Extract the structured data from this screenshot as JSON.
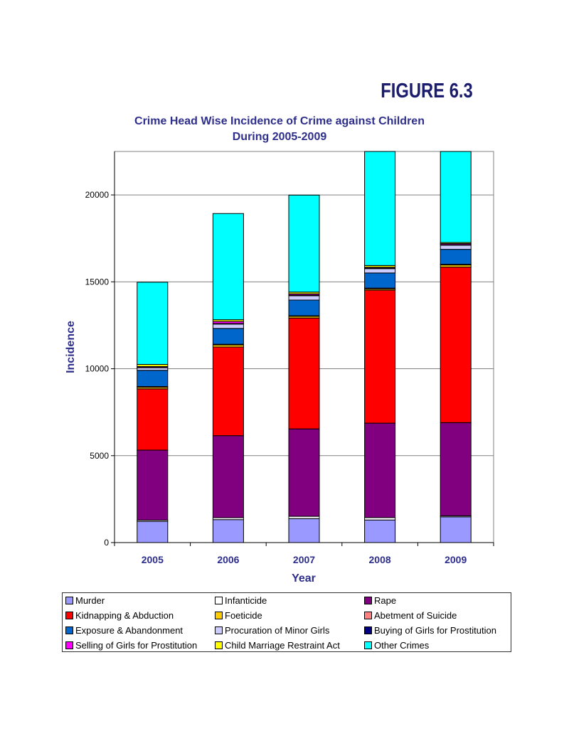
{
  "figure_label": "FIGURE 6.3",
  "chart_data": {
    "type": "bar",
    "stacked": true,
    "title": "Crime Head Wise Incidence of Crime against Children",
    "subtitle": "During 2005-2009",
    "xlabel": "Year",
    "ylabel": "Incidence",
    "ylim": [
      0,
      22500
    ],
    "yticks": [
      0,
      5000,
      10000,
      15000,
      20000
    ],
    "grid": true,
    "legend_position": "bottom",
    "categories": [
      "2005",
      "2006",
      "2007",
      "2008",
      "2009"
    ],
    "series": [
      {
        "name": "Murder",
        "color": "#9999ff",
        "values": [
          1220,
          1320,
          1380,
          1300,
          1480
        ]
      },
      {
        "name": "Infanticide",
        "color": "#ffffff",
        "values": [
          70,
          110,
          130,
          140,
          60
        ]
      },
      {
        "name": "Rape",
        "color": "#800080",
        "values": [
          4030,
          4720,
          5030,
          5430,
          5360
        ]
      },
      {
        "name": "Kidnapping & Abduction",
        "color": "#ff0000",
        "values": [
          3520,
          5100,
          6380,
          7650,
          8950
        ]
      },
      {
        "name": "Foeticide",
        "color": "#ffcc00",
        "values": [
          90,
          120,
          100,
          70,
          120
        ]
      },
      {
        "name": "Abetment of Suicide",
        "color": "#ff8080",
        "values": [
          50,
          40,
          30,
          50,
          40
        ]
      },
      {
        "name": "Exposure & Abandonment",
        "color": "#0066cc",
        "values": [
          930,
          910,
          900,
          870,
          860
        ]
      },
      {
        "name": "Procuration of Minor Girls",
        "color": "#ccccff",
        "values": [
          150,
          250,
          250,
          250,
          240
        ]
      },
      {
        "name": "Buying of Girls for Prostitution",
        "color": "#000080",
        "values": [
          20,
          30,
          40,
          30,
          30
        ]
      },
      {
        "name": "Selling of Girls for Prostitution",
        "color": "#ff00ff",
        "values": [
          50,
          120,
          70,
          50,
          60
        ]
      },
      {
        "name": "Child Marriage Restraint Act",
        "color": "#ffff00",
        "values": [
          120,
          100,
          100,
          100,
          60
        ]
      },
      {
        "name": "Other Crimes",
        "color": "#00ffff",
        "values": [
          4730,
          6110,
          5580,
          6560,
          5400
        ]
      }
    ]
  }
}
